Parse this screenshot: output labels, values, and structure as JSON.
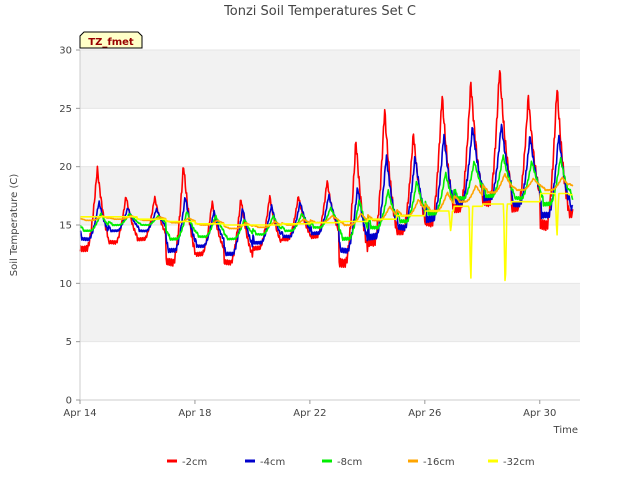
{
  "chart_data": {
    "type": "line",
    "title": "Tonzi Soil Temperatures Set C",
    "xlabel": "Time",
    "ylabel": "Soil Temperature (C)",
    "badge": "TZ_fmet",
    "ylim": [
      0,
      30
    ],
    "yticks": [
      0,
      5,
      10,
      15,
      20,
      25,
      30
    ],
    "x_start": "Apr 14",
    "x_end": "Apr 31",
    "xticks": [
      {
        "label": "Apr 14",
        "day": 14
      },
      {
        "label": "Apr 18",
        "day": 18
      },
      {
        "label": "Apr 22",
        "day": 22
      },
      {
        "label": "Apr 26",
        "day": 26
      },
      {
        "label": "Apr 30",
        "day": 30
      }
    ],
    "grid_bands": true,
    "legend_position": "bottom",
    "days": [
      14,
      15,
      16,
      17,
      18,
      19,
      20,
      21,
      22,
      23,
      24,
      25,
      26,
      27,
      28,
      29,
      30,
      31
    ],
    "series": [
      {
        "name": "-2cm",
        "color": "#ff0000",
        "daily_min": [
          13.0,
          13.5,
          13.8,
          11.8,
          12.5,
          11.8,
          13.0,
          13.8,
          14.0,
          11.8,
          13.5,
          14.5,
          15.2,
          16.5,
          17.0,
          16.5,
          15.0,
          16.0
        ],
        "daily_max": [
          19.9,
          17.5,
          17.4,
          20.2,
          17.0,
          17.3,
          17.5,
          17.5,
          18.8,
          22.3,
          25.0,
          22.9,
          26.2,
          27.3,
          28.5,
          26.1,
          26.9,
          25.8
        ]
      },
      {
        "name": "-4cm",
        "color": "#0000cc",
        "daily_min": [
          13.8,
          14.5,
          14.5,
          12.8,
          13.2,
          12.5,
          13.5,
          14.0,
          14.3,
          12.8,
          14.0,
          14.8,
          15.5,
          17.0,
          17.3,
          16.8,
          15.8,
          16.5
        ],
        "daily_max": [
          17.0,
          16.5,
          16.4,
          17.5,
          16.2,
          16.5,
          16.7,
          17.0,
          17.6,
          18.3,
          21.0,
          21.0,
          22.8,
          23.5,
          23.7,
          22.7,
          22.8,
          22.8
        ]
      },
      {
        "name": "-8cm",
        "color": "#00ee00",
        "daily_min": [
          14.5,
          15.0,
          15.0,
          13.8,
          14.0,
          13.8,
          14.2,
          14.5,
          14.8,
          13.8,
          14.8,
          15.3,
          16.0,
          17.3,
          17.5,
          17.3,
          16.8,
          17.2
        ],
        "daily_max": [
          16.0,
          16.0,
          15.8,
          16.2,
          15.8,
          15.5,
          15.8,
          16.0,
          16.5,
          17.2,
          18.0,
          18.8,
          19.5,
          20.5,
          21.0,
          20.5,
          20.8,
          20.8
        ]
      },
      {
        "name": "-16cm",
        "color": "#ffa500",
        "daily_min": [
          15.4,
          15.5,
          15.4,
          15.2,
          15.0,
          14.7,
          14.8,
          15.0,
          15.2,
          15.0,
          15.4,
          15.8,
          16.2,
          17.0,
          17.8,
          18.0,
          18.0,
          18.2
        ],
        "daily_max": [
          15.8,
          15.8,
          15.7,
          15.6,
          15.4,
          15.2,
          15.3,
          15.5,
          15.8,
          16.0,
          16.6,
          17.2,
          17.8,
          18.4,
          19.4,
          19.0,
          19.1,
          19.2
        ]
      },
      {
        "name": "-32cm",
        "color": "#ffff00",
        "daily_min": [
          15.7,
          15.7,
          15.5,
          15.3,
          15.1,
          15.0,
          15.0,
          15.1,
          15.2,
          15.3,
          15.5,
          15.8,
          16.2,
          16.6,
          16.8,
          17.0,
          17.7,
          17.6
        ],
        "daily_max": [
          15.7,
          15.7,
          15.5,
          15.3,
          15.1,
          15.0,
          15.0,
          15.1,
          15.2,
          15.3,
          15.5,
          15.8,
          16.2,
          16.6,
          16.8,
          17.0,
          17.7,
          17.6
        ],
        "spikes": [
          {
            "day": 27.6,
            "value": 10.0
          },
          {
            "day": 28.8,
            "value": 9.2
          },
          {
            "day": 26.9,
            "value": 14.4
          },
          {
            "day": 30.6,
            "value": 13.9
          }
        ]
      }
    ]
  }
}
